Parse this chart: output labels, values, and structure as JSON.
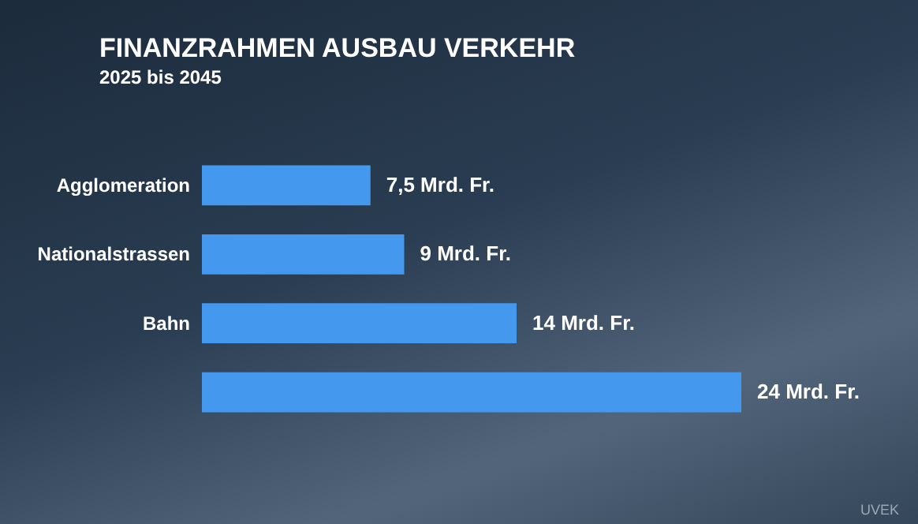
{
  "chart_data": {
    "type": "bar",
    "orientation": "horizontal",
    "title": "FINANZRAHMEN AUSBAU VERKEHR",
    "subtitle": "2025 bis 2045",
    "categories": [
      "Agglomeration",
      "Nationalstrassen",
      "Bahn",
      null
    ],
    "values": [
      7.5,
      9,
      14,
      24
    ],
    "value_labels": [
      "7,5 Mrd. Fr.",
      "9 Mrd. Fr.",
      "14 Mrd. Fr.",
      "24 Mrd. Fr."
    ],
    "color": "#4499ee",
    "annotations": [
      "UVEK"
    ]
  }
}
